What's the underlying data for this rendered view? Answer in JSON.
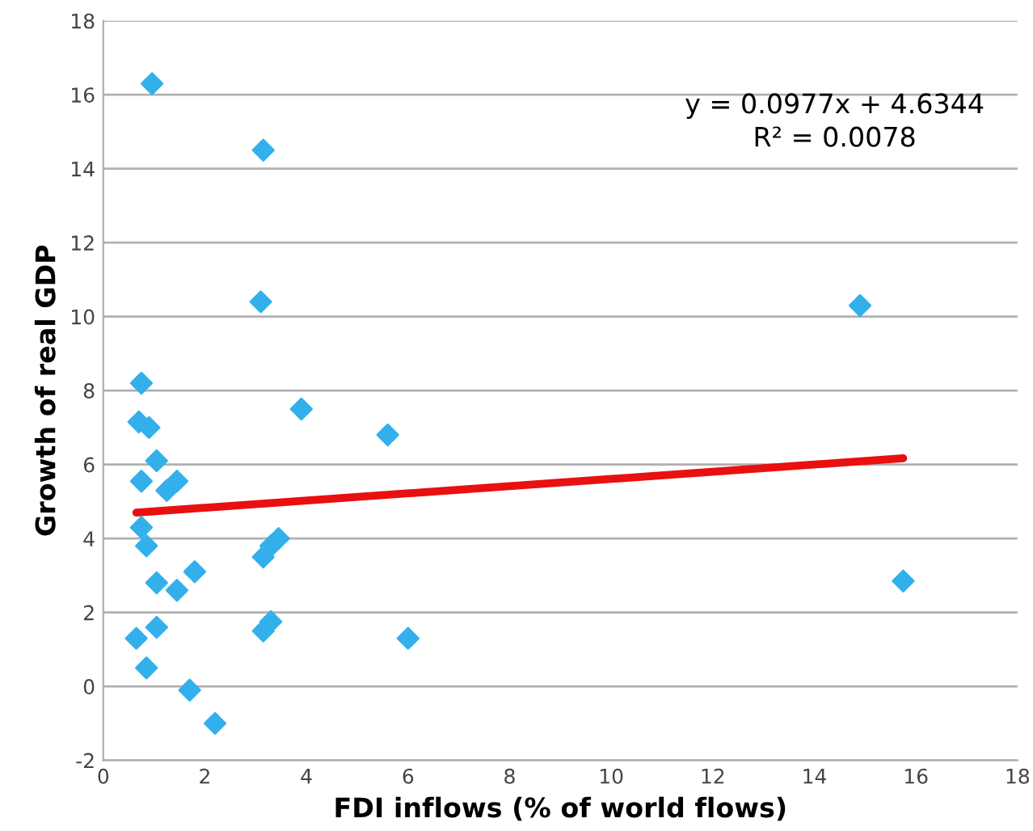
{
  "chart_data": {
    "type": "scatter",
    "xlabel": "FDI inflows (% of world flows)",
    "ylabel": "Growth of real GDP",
    "xlim": [
      0,
      18
    ],
    "xticks": [
      0,
      2,
      4,
      6,
      8,
      10,
      12,
      14,
      16,
      18
    ],
    "ylim": [
      -2,
      18
    ],
    "yticks": [
      -2,
      0,
      2,
      4,
      6,
      8,
      10,
      12,
      14,
      16,
      18
    ],
    "grid": "y",
    "marker": "diamond",
    "series": [
      {
        "color": "#33b0ec",
        "x": [
          0.96,
          3.15,
          3.1,
          0.75,
          0.7,
          0.9,
          1.05,
          0.75,
          1.25,
          1.45,
          3.9,
          5.6,
          0.75,
          0.85,
          1.05,
          1.45,
          1.8,
          1.05,
          0.65,
          0.85,
          1.7,
          2.2,
          3.15,
          3.3,
          3.45,
          3.15,
          3.3,
          6.0,
          14.9,
          15.75
        ],
        "values": [
          16.3,
          14.5,
          10.4,
          8.2,
          7.15,
          7.0,
          6.1,
          5.55,
          5.3,
          5.55,
          7.5,
          6.8,
          4.3,
          3.8,
          2.8,
          2.6,
          3.1,
          1.6,
          1.3,
          0.5,
          -0.1,
          -1.0,
          3.5,
          3.8,
          4.0,
          1.5,
          1.75,
          1.3,
          10.3,
          2.85
        ]
      },
      {
        "type": "line",
        "color": "#e81010",
        "marker": "none",
        "x": [
          0.65,
          15.75
        ],
        "values": [
          4.7,
          6.17
        ]
      }
    ],
    "annotations": [
      "y = 0.0977x + 4.6344",
      "R² = 0.0078"
    ]
  }
}
